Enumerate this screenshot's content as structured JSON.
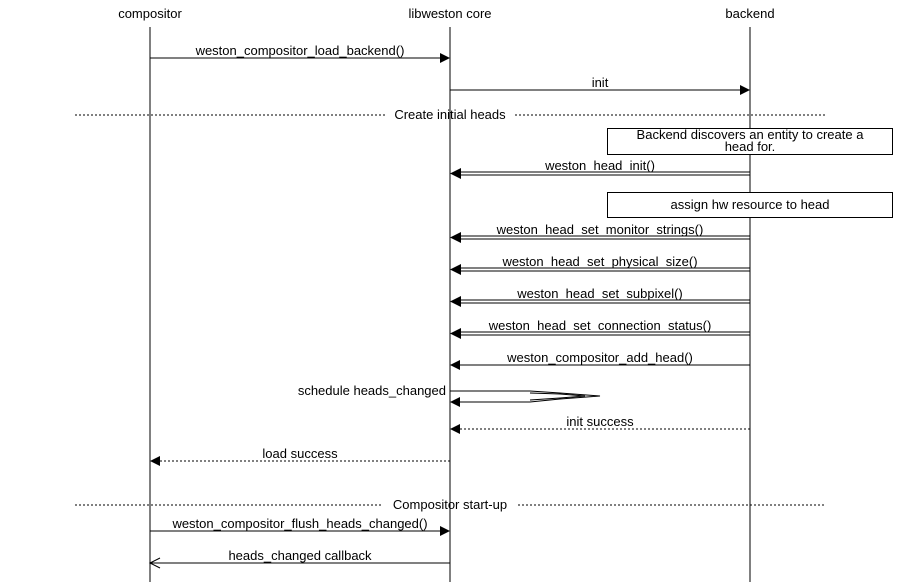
{
  "entities": [
    "compositor",
    "libweston core",
    "backend"
  ],
  "messages": {
    "load_backend": "weston_compositor_load_backend()",
    "init": "init",
    "divider_heads": "Create initial heads",
    "discover_line1": "Backend discovers an entity to create a",
    "discover_line2": "head for.",
    "head_init": "weston_head_init()",
    "assign_hw": "assign hw resource to head",
    "monitor_strings": "weston_head_set_monitor_strings()",
    "physical_size": "weston_head_set_physical_size()",
    "subpixel": "weston_head_set_subpixel()",
    "connection_status": "weston_head_set_connection_status()",
    "add_head": "weston_compositor_add_head()",
    "schedule": "schedule heads_changed",
    "init_success": "init success",
    "load_success": "load success",
    "divider_startup": "Compositor start-up",
    "flush": "weston_compositor_flush_heads_changed()",
    "callback": "heads_changed callback"
  }
}
